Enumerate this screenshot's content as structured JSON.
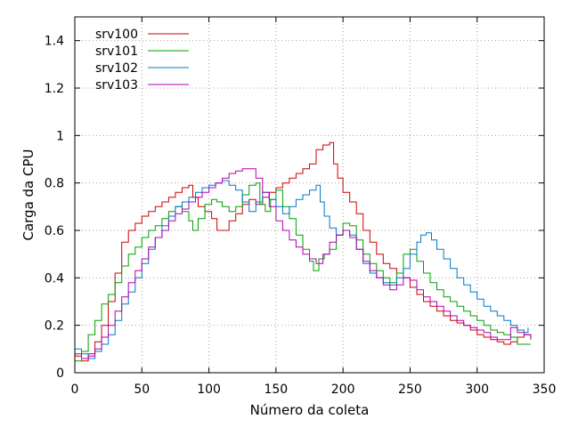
{
  "chart_data": {
    "type": "line",
    "title": "",
    "xlabel": "Número da coleta",
    "ylabel": "Carga da CPU",
    "xlim": [
      0,
      350
    ],
    "ylim": [
      0,
      1.5
    ],
    "x_ticks": [
      0,
      50,
      100,
      150,
      200,
      250,
      300,
      350
    ],
    "y_ticks": [
      0,
      0.2,
      0.4,
      0.6,
      0.8,
      1,
      1.2,
      1.4
    ],
    "grid": true,
    "legend_position": "top-left",
    "series": [
      {
        "name": "srv100",
        "color": "#cc0000",
        "points": [
          [
            0,
            0.07
          ],
          [
            5,
            0.05
          ],
          [
            10,
            0.08
          ],
          [
            15,
            0.13
          ],
          [
            20,
            0.2
          ],
          [
            25,
            0.3
          ],
          [
            30,
            0.42
          ],
          [
            35,
            0.55
          ],
          [
            40,
            0.6
          ],
          [
            45,
            0.63
          ],
          [
            50,
            0.66
          ],
          [
            55,
            0.68
          ],
          [
            60,
            0.7
          ],
          [
            65,
            0.72
          ],
          [
            70,
            0.74
          ],
          [
            75,
            0.76
          ],
          [
            80,
            0.78
          ],
          [
            85,
            0.79
          ],
          [
            88,
            0.74
          ],
          [
            92,
            0.7
          ],
          [
            97,
            0.68
          ],
          [
            102,
            0.65
          ],
          [
            106,
            0.6
          ],
          [
            110,
            0.6
          ],
          [
            115,
            0.64
          ],
          [
            120,
            0.67
          ],
          [
            125,
            0.71
          ],
          [
            130,
            0.73
          ],
          [
            135,
            0.71
          ],
          [
            140,
            0.74
          ],
          [
            145,
            0.76
          ],
          [
            150,
            0.78
          ],
          [
            155,
            0.8
          ],
          [
            160,
            0.82
          ],
          [
            165,
            0.84
          ],
          [
            170,
            0.86
          ],
          [
            175,
            0.88
          ],
          [
            180,
            0.94
          ],
          [
            185,
            0.96
          ],
          [
            190,
            0.97
          ],
          [
            193,
            0.88
          ],
          [
            196,
            0.82
          ],
          [
            200,
            0.76
          ],
          [
            205,
            0.72
          ],
          [
            210,
            0.67
          ],
          [
            215,
            0.6
          ],
          [
            220,
            0.55
          ],
          [
            225,
            0.5
          ],
          [
            230,
            0.46
          ],
          [
            235,
            0.44
          ],
          [
            240,
            0.42
          ],
          [
            245,
            0.4
          ],
          [
            250,
            0.36
          ],
          [
            255,
            0.33
          ],
          [
            260,
            0.3
          ],
          [
            265,
            0.28
          ],
          [
            270,
            0.26
          ],
          [
            275,
            0.24
          ],
          [
            280,
            0.22
          ],
          [
            285,
            0.21
          ],
          [
            290,
            0.2
          ],
          [
            295,
            0.18
          ],
          [
            300,
            0.16
          ],
          [
            305,
            0.15
          ],
          [
            310,
            0.14
          ],
          [
            315,
            0.13
          ],
          [
            320,
            0.12
          ],
          [
            325,
            0.13
          ],
          [
            330,
            0.15
          ],
          [
            335,
            0.16
          ],
          [
            340,
            0.14
          ]
        ]
      },
      {
        "name": "srv101",
        "color": "#00a000",
        "points": [
          [
            0,
            0.05
          ],
          [
            5,
            0.09
          ],
          [
            10,
            0.16
          ],
          [
            15,
            0.22
          ],
          [
            20,
            0.29
          ],
          [
            25,
            0.33
          ],
          [
            30,
            0.38
          ],
          [
            35,
            0.45
          ],
          [
            40,
            0.5
          ],
          [
            45,
            0.53
          ],
          [
            50,
            0.57
          ],
          [
            55,
            0.6
          ],
          [
            60,
            0.62
          ],
          [
            65,
            0.65
          ],
          [
            70,
            0.68
          ],
          [
            75,
            0.7
          ],
          [
            80,
            0.68
          ],
          [
            85,
            0.64
          ],
          [
            88,
            0.6
          ],
          [
            92,
            0.65
          ],
          [
            97,
            0.71
          ],
          [
            102,
            0.73
          ],
          [
            106,
            0.72
          ],
          [
            110,
            0.7
          ],
          [
            115,
            0.68
          ],
          [
            120,
            0.7
          ],
          [
            125,
            0.75
          ],
          [
            130,
            0.79
          ],
          [
            135,
            0.8
          ],
          [
            138,
            0.71
          ],
          [
            142,
            0.68
          ],
          [
            146,
            0.73
          ],
          [
            150,
            0.77
          ],
          [
            155,
            0.7
          ],
          [
            160,
            0.65
          ],
          [
            165,
            0.58
          ],
          [
            170,
            0.52
          ],
          [
            175,
            0.47
          ],
          [
            178,
            0.43
          ],
          [
            182,
            0.48
          ],
          [
            186,
            0.5
          ],
          [
            190,
            0.52
          ],
          [
            195,
            0.58
          ],
          [
            200,
            0.63
          ],
          [
            205,
            0.62
          ],
          [
            210,
            0.56
          ],
          [
            215,
            0.5
          ],
          [
            220,
            0.46
          ],
          [
            225,
            0.43
          ],
          [
            230,
            0.4
          ],
          [
            235,
            0.38
          ],
          [
            240,
            0.42
          ],
          [
            245,
            0.5
          ],
          [
            250,
            0.52
          ],
          [
            255,
            0.47
          ],
          [
            260,
            0.42
          ],
          [
            265,
            0.38
          ],
          [
            270,
            0.35
          ],
          [
            275,
            0.32
          ],
          [
            280,
            0.3
          ],
          [
            285,
            0.28
          ],
          [
            290,
            0.26
          ],
          [
            295,
            0.24
          ],
          [
            300,
            0.22
          ],
          [
            305,
            0.2
          ],
          [
            310,
            0.18
          ],
          [
            315,
            0.17
          ],
          [
            320,
            0.16
          ],
          [
            325,
            0.15
          ],
          [
            330,
            0.12
          ],
          [
            340,
            0.12
          ]
        ]
      },
      {
        "name": "srv102",
        "color": "#0078c8",
        "points": [
          [
            0,
            0.1
          ],
          [
            5,
            0.08
          ],
          [
            10,
            0.06
          ],
          [
            15,
            0.09
          ],
          [
            20,
            0.12
          ],
          [
            25,
            0.16
          ],
          [
            30,
            0.22
          ],
          [
            35,
            0.29
          ],
          [
            40,
            0.34
          ],
          [
            45,
            0.4
          ],
          [
            50,
            0.46
          ],
          [
            55,
            0.52
          ],
          [
            60,
            0.57
          ],
          [
            65,
            0.62
          ],
          [
            70,
            0.66
          ],
          [
            75,
            0.7
          ],
          [
            80,
            0.72
          ],
          [
            85,
            0.74
          ],
          [
            90,
            0.76
          ],
          [
            95,
            0.78
          ],
          [
            100,
            0.79
          ],
          [
            105,
            0.8
          ],
          [
            110,
            0.81
          ],
          [
            115,
            0.79
          ],
          [
            120,
            0.77
          ],
          [
            125,
            0.72
          ],
          [
            130,
            0.68
          ],
          [
            135,
            0.72
          ],
          [
            140,
            0.76
          ],
          [
            145,
            0.73
          ],
          [
            150,
            0.7
          ],
          [
            155,
            0.67
          ],
          [
            160,
            0.7
          ],
          [
            165,
            0.73
          ],
          [
            170,
            0.75
          ],
          [
            175,
            0.77
          ],
          [
            180,
            0.79
          ],
          [
            183,
            0.72
          ],
          [
            186,
            0.66
          ],
          [
            190,
            0.61
          ],
          [
            195,
            0.58
          ],
          [
            200,
            0.6
          ],
          [
            205,
            0.58
          ],
          [
            210,
            0.52
          ],
          [
            215,
            0.46
          ],
          [
            220,
            0.42
          ],
          [
            225,
            0.4
          ],
          [
            230,
            0.38
          ],
          [
            235,
            0.37
          ],
          [
            240,
            0.4
          ],
          [
            245,
            0.44
          ],
          [
            250,
            0.5
          ],
          [
            255,
            0.55
          ],
          [
            258,
            0.58
          ],
          [
            262,
            0.59
          ],
          [
            266,
            0.56
          ],
          [
            270,
            0.52
          ],
          [
            275,
            0.48
          ],
          [
            280,
            0.44
          ],
          [
            285,
            0.4
          ],
          [
            290,
            0.37
          ],
          [
            295,
            0.34
          ],
          [
            300,
            0.31
          ],
          [
            305,
            0.28
          ],
          [
            310,
            0.26
          ],
          [
            315,
            0.24
          ],
          [
            320,
            0.22
          ],
          [
            325,
            0.2
          ],
          [
            330,
            0.18
          ],
          [
            335,
            0.17
          ],
          [
            338,
            0.19
          ]
        ]
      },
      {
        "name": "srv103",
        "color": "#b000b0",
        "points": [
          [
            0,
            0.08
          ],
          [
            5,
            0.06
          ],
          [
            10,
            0.07
          ],
          [
            15,
            0.1
          ],
          [
            20,
            0.15
          ],
          [
            25,
            0.2
          ],
          [
            30,
            0.26
          ],
          [
            35,
            0.32
          ],
          [
            40,
            0.38
          ],
          [
            45,
            0.43
          ],
          [
            50,
            0.48
          ],
          [
            55,
            0.53
          ],
          [
            60,
            0.57
          ],
          [
            65,
            0.6
          ],
          [
            70,
            0.64
          ],
          [
            75,
            0.67
          ],
          [
            80,
            0.69
          ],
          [
            85,
            0.72
          ],
          [
            90,
            0.74
          ],
          [
            95,
            0.76
          ],
          [
            100,
            0.78
          ],
          [
            105,
            0.8
          ],
          [
            110,
            0.82
          ],
          [
            115,
            0.84
          ],
          [
            120,
            0.85
          ],
          [
            125,
            0.86
          ],
          [
            130,
            0.86
          ],
          [
            135,
            0.82
          ],
          [
            140,
            0.76
          ],
          [
            145,
            0.7
          ],
          [
            150,
            0.64
          ],
          [
            155,
            0.6
          ],
          [
            160,
            0.56
          ],
          [
            165,
            0.53
          ],
          [
            170,
            0.5
          ],
          [
            175,
            0.48
          ],
          [
            180,
            0.46
          ],
          [
            185,
            0.5
          ],
          [
            190,
            0.55
          ],
          [
            195,
            0.58
          ],
          [
            200,
            0.6
          ],
          [
            205,
            0.57
          ],
          [
            210,
            0.52
          ],
          [
            215,
            0.47
          ],
          [
            220,
            0.43
          ],
          [
            225,
            0.4
          ],
          [
            230,
            0.37
          ],
          [
            235,
            0.35
          ],
          [
            240,
            0.37
          ],
          [
            245,
            0.4
          ],
          [
            250,
            0.39
          ],
          [
            255,
            0.35
          ],
          [
            260,
            0.32
          ],
          [
            265,
            0.3
          ],
          [
            270,
            0.28
          ],
          [
            275,
            0.26
          ],
          [
            280,
            0.24
          ],
          [
            285,
            0.22
          ],
          [
            290,
            0.2
          ],
          [
            295,
            0.19
          ],
          [
            300,
            0.18
          ],
          [
            305,
            0.17
          ],
          [
            310,
            0.15
          ],
          [
            315,
            0.14
          ],
          [
            320,
            0.14
          ],
          [
            325,
            0.19
          ],
          [
            330,
            0.17
          ],
          [
            335,
            0.16
          ],
          [
            340,
            0.15
          ]
        ]
      }
    ]
  }
}
